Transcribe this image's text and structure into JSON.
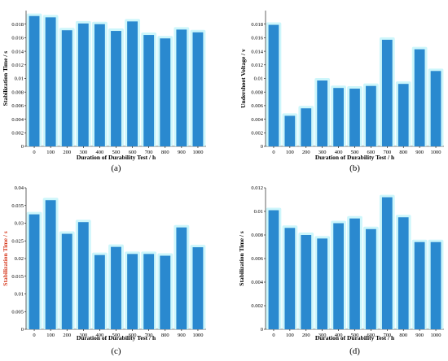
{
  "colors": {
    "bar": "#2a89cf",
    "glow": "#cdf6fb",
    "axis": "#000000"
  },
  "chart_data": [
    {
      "id": "a",
      "type": "bar",
      "caption": "(a)",
      "xlabel": "Duration of Durability Test / h",
      "ylabel": "Stabilization Time / s",
      "ylabel_color": "#000000",
      "categories": [
        "0",
        "100",
        "200",
        "300",
        "400",
        "500",
        "600",
        "700",
        "800",
        "900",
        "1000"
      ],
      "values": [
        0.0192,
        0.019,
        0.0171,
        0.0181,
        0.018,
        0.017,
        0.0184,
        0.0164,
        0.0159,
        0.0172,
        0.0168
      ],
      "ylim": [
        0,
        0.02
      ],
      "yticks": [
        "0",
        "0.002",
        "0.004",
        "0.006",
        "0.008",
        "0.01",
        "0.012",
        "0.014",
        "0.016",
        "0.018"
      ],
      "ytick_values": [
        0,
        0.002,
        0.004,
        0.006,
        0.008,
        0.01,
        0.012,
        0.014,
        0.016,
        0.018
      ]
    },
    {
      "id": "b",
      "type": "bar",
      "caption": "(b)",
      "xlabel": "Duration of Durability Test / h",
      "ylabel": "Undershoot Voltage / v",
      "ylabel_color": "#000000",
      "categories": [
        "0",
        "100",
        "200",
        "300",
        "400",
        "500",
        "600",
        "700",
        "800",
        "900",
        "1000"
      ],
      "values": [
        0.0179,
        0.0045,
        0.0056,
        0.0097,
        0.0086,
        0.0085,
        0.0089,
        0.0157,
        0.0092,
        0.0143,
        0.0111
      ],
      "ylim": [
        0,
        0.02
      ],
      "yticks": [
        "0",
        "0.002",
        "0.004",
        "0.006",
        "0.008",
        "0.01",
        "0.012",
        "0.014",
        "0.016",
        "0.018"
      ],
      "ytick_values": [
        0,
        0.002,
        0.004,
        0.006,
        0.008,
        0.01,
        0.012,
        0.014,
        0.016,
        0.018
      ]
    },
    {
      "id": "c",
      "type": "bar",
      "caption": "(c)",
      "xlabel": "Duration of Durability Test / h",
      "ylabel": "Stabilization Time / s",
      "ylabel_color": "#d63a1f",
      "categories": [
        "0",
        "100",
        "200",
        "300",
        "400",
        "500",
        "600",
        "700",
        "800",
        "900",
        "1000"
      ],
      "values": [
        0.0325,
        0.0365,
        0.027,
        0.0303,
        0.021,
        0.0233,
        0.0213,
        0.0213,
        0.0208,
        0.0288,
        0.0232
      ],
      "ylim": [
        0,
        0.04
      ],
      "yticks": [
        "0",
        "0.005",
        "0.01",
        "0.015",
        "0.02",
        "0.025",
        "0.03",
        "0.035",
        "0.04"
      ],
      "ytick_values": [
        0,
        0.005,
        0.01,
        0.015,
        0.02,
        0.025,
        0.03,
        0.035,
        0.04
      ]
    },
    {
      "id": "d",
      "type": "bar",
      "caption": "(d)",
      "xlabel": "Duration of Durability Test / h",
      "ylabel": "Stabilization Time / s",
      "ylabel_color": "#000000",
      "categories": [
        "0",
        "100",
        "200",
        "300",
        "400",
        "500",
        "600",
        "700",
        "800",
        "900",
        "1000"
      ],
      "values": [
        0.0101,
        0.0086,
        0.008,
        0.0077,
        0.009,
        0.0094,
        0.0085,
        0.0112,
        0.0095,
        0.0074,
        0.0074
      ],
      "ylim": [
        0,
        0.012
      ],
      "yticks": [
        "0",
        "0.002",
        "0.004",
        "0.006",
        "0.008",
        "0.01",
        "0.012"
      ],
      "ytick_values": [
        0,
        0.002,
        0.004,
        0.006,
        0.008,
        0.01,
        0.012
      ]
    }
  ]
}
